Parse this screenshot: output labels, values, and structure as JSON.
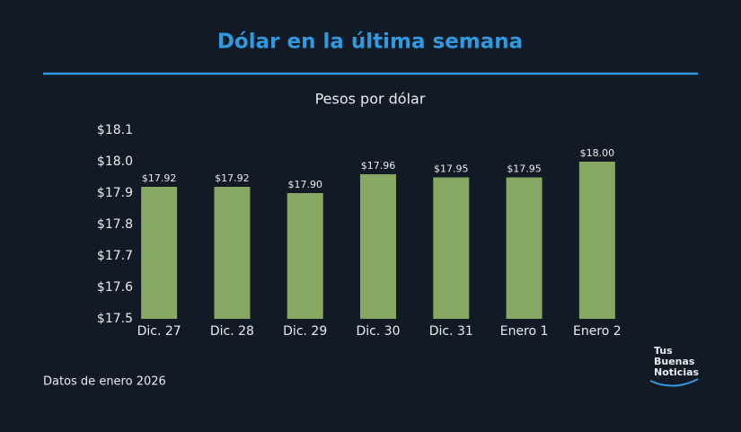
{
  "chart_data": {
    "type": "bar",
    "title": "Dólar en la última semana",
    "subtitle": "Pesos por dólar",
    "categories": [
      "Dic. 27",
      "Dic. 28",
      "Dic. 29",
      "Dic. 30",
      "Dic. 31",
      "Enero 1",
      "Enero 2"
    ],
    "values": [
      17.92,
      17.92,
      17.9,
      17.96,
      17.95,
      17.95,
      18.0
    ],
    "value_labels": [
      "$17.92",
      "$17.92",
      "$17.90",
      "$17.96",
      "$17.95",
      "$17.95",
      "$18.00"
    ],
    "color": "#86a862",
    "ylim": [
      17.5,
      18.1
    ],
    "yticks": [
      {
        "value": 17.5,
        "label": "$17.5"
      },
      {
        "value": 17.6,
        "label": "$17.6"
      },
      {
        "value": 17.7,
        "label": "$17.7"
      },
      {
        "value": 17.8,
        "label": "$17.8"
      },
      {
        "value": 17.9,
        "label": "$17.9"
      },
      {
        "value": 18.0,
        "label": "$18.0"
      },
      {
        "value": 18.1,
        "label": "$18.1"
      }
    ],
    "grid": false,
    "footer": "Datos de enero 2026",
    "logo": [
      "Tus",
      "Buenas",
      "Noticias"
    ]
  }
}
